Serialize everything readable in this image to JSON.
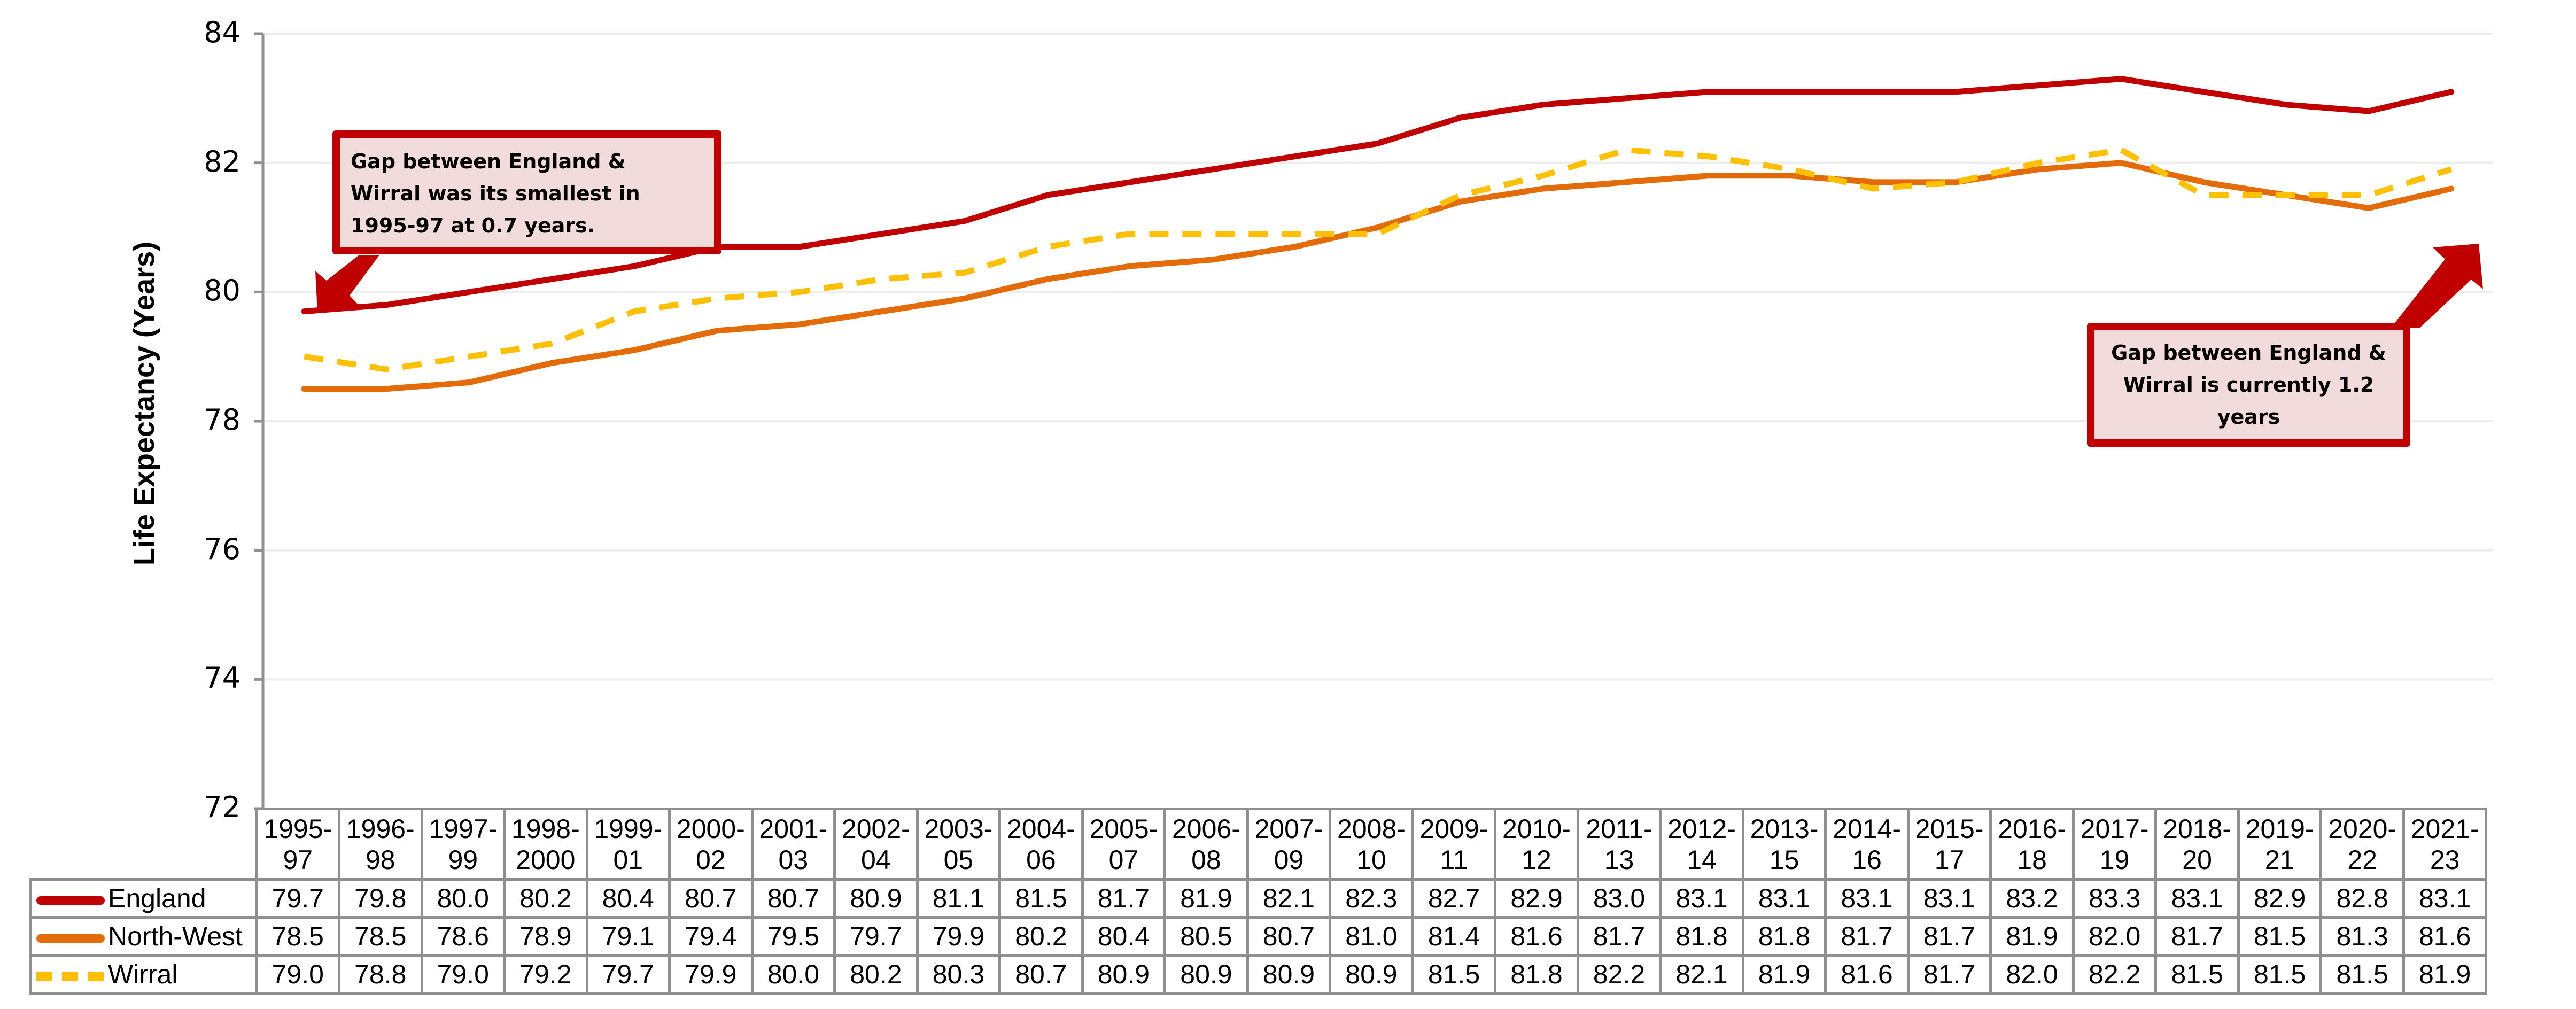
{
  "chart_data": {
    "type": "line",
    "title": "",
    "xlabel": "",
    "ylabel": "Life Expectancy (Years)",
    "ylim": [
      72,
      84
    ],
    "yticks": [
      72,
      74,
      76,
      78,
      80,
      82,
      84
    ],
    "grid": true,
    "legend_position": "data table (bottom)",
    "categories": [
      "1995-97",
      "1996-98",
      "1997-99",
      "1998-2000",
      "1999-01",
      "2000-02",
      "2001-03",
      "2002-04",
      "2003-05",
      "2004-06",
      "2005-07",
      "2006-08",
      "2007-09",
      "2008-10",
      "2009-11",
      "2010-12",
      "2011-13",
      "2012-14",
      "2013-15",
      "2014-16",
      "2015-17",
      "2016-18",
      "2017-19",
      "2018-20",
      "2019-21",
      "2020-22",
      "2021-23"
    ],
    "category_lines": [
      [
        "1995-",
        "97"
      ],
      [
        "1996-",
        "98"
      ],
      [
        "1997-",
        "99"
      ],
      [
        "1998-",
        "2000"
      ],
      [
        "1999-",
        "01"
      ],
      [
        "2000-",
        "02"
      ],
      [
        "2001-",
        "03"
      ],
      [
        "2002-",
        "04"
      ],
      [
        "2003-",
        "05"
      ],
      [
        "2004-",
        "06"
      ],
      [
        "2005-",
        "07"
      ],
      [
        "2006-",
        "08"
      ],
      [
        "2007-",
        "09"
      ],
      [
        "2008-",
        "10"
      ],
      [
        "2009-",
        "11"
      ],
      [
        "2010-",
        "12"
      ],
      [
        "2011-",
        "13"
      ],
      [
        "2012-",
        "14"
      ],
      [
        "2013-",
        "15"
      ],
      [
        "2014-",
        "16"
      ],
      [
        "2015-",
        "17"
      ],
      [
        "2016-",
        "18"
      ],
      [
        "2017-",
        "19"
      ],
      [
        "2018-",
        "20"
      ],
      [
        "2019-",
        "21"
      ],
      [
        "2020-",
        "22"
      ],
      [
        "2021-",
        "23"
      ]
    ],
    "series": [
      {
        "name": "England",
        "color": "#c00000",
        "style": "solid",
        "values": [
          79.7,
          79.8,
          80.0,
          80.2,
          80.4,
          80.7,
          80.7,
          80.9,
          81.1,
          81.5,
          81.7,
          81.9,
          82.1,
          82.3,
          82.7,
          82.9,
          83.0,
          83.1,
          83.1,
          83.1,
          83.1,
          83.2,
          83.3,
          83.1,
          82.9,
          82.8,
          83.1
        ]
      },
      {
        "name": "North-West",
        "color": "#e36c09",
        "style": "solid",
        "values": [
          78.5,
          78.5,
          78.6,
          78.9,
          79.1,
          79.4,
          79.5,
          79.7,
          79.9,
          80.2,
          80.4,
          80.5,
          80.7,
          81.0,
          81.4,
          81.6,
          81.7,
          81.8,
          81.8,
          81.7,
          81.7,
          81.9,
          82.0,
          81.7,
          81.5,
          81.3,
          81.6
        ]
      },
      {
        "name": "Wirral",
        "color": "#ffc000",
        "style": "dashed",
        "values": [
          79.0,
          78.8,
          79.0,
          79.2,
          79.7,
          79.9,
          80.0,
          80.2,
          80.3,
          80.7,
          80.9,
          80.9,
          80.9,
          80.9,
          81.5,
          81.8,
          82.2,
          82.1,
          81.9,
          81.6,
          81.7,
          82.0,
          82.2,
          81.5,
          81.5,
          81.5,
          81.9
        ]
      }
    ],
    "annotations": [
      {
        "lines": [
          "Gap between England &",
          "Wirral was its smallest in",
          "1995-97 at 0.7 years."
        ],
        "points_to": "1995-97"
      },
      {
        "lines": [
          "Gap between England &",
          "Wirral is currently 1.2",
          "years"
        ],
        "points_to": "2021-23"
      }
    ]
  }
}
